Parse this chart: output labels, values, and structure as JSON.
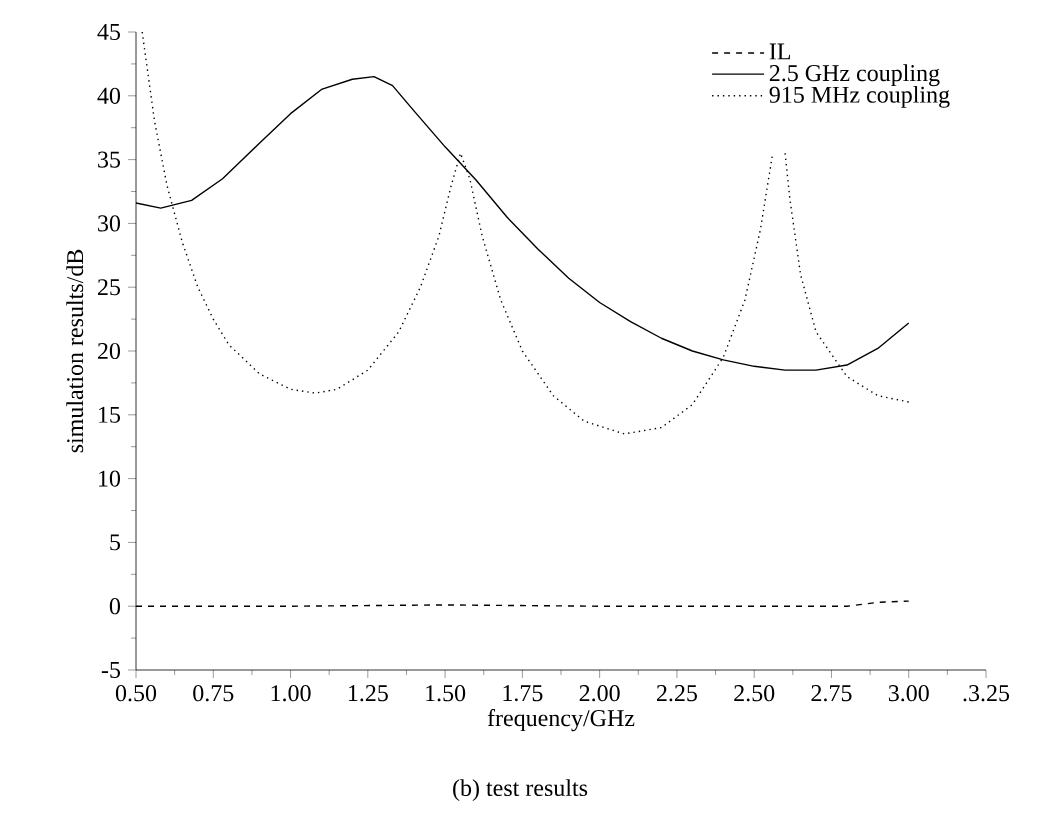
{
  "chart_data": {
    "type": "line",
    "xlabel": "frequency/GHz",
    "ylabel": "simulation results/dB",
    "annotations": [
      "(b) test results"
    ],
    "xlim": [
      0.5,
      3.25
    ],
    "ylim": [
      -5,
      45
    ],
    "xticks": [
      {
        "value": 0.5,
        "label": "0.50"
      },
      {
        "value": 0.75,
        "label": "0.75"
      },
      {
        "value": 1.0,
        "label": "1.00"
      },
      {
        "value": 1.25,
        "label": "1.25"
      },
      {
        "value": 1.5,
        "label": "1.50"
      },
      {
        "value": 1.75,
        "label": "1.75"
      },
      {
        "value": 2.0,
        "label": "2.00"
      },
      {
        "value": 2.25,
        "label": "2.25"
      },
      {
        "value": 2.5,
        "label": "2.50"
      },
      {
        "value": 2.75,
        "label": "2.75"
      },
      {
        "value": 3.0,
        "label": "3.00"
      },
      {
        "value": 3.25,
        "label": ".3.25"
      }
    ],
    "yticks": [
      -5,
      0,
      5,
      10,
      15,
      20,
      25,
      30,
      35,
      40,
      45
    ],
    "legend": "top right",
    "grid": false,
    "series": [
      {
        "name": "IL",
        "color": "#000000",
        "line_style": "dashed",
        "x": [
          0.5,
          1.0,
          1.5,
          2.0,
          2.5,
          2.8,
          2.9,
          3.0
        ],
        "values": [
          0,
          0,
          0.1,
          0,
          0,
          0,
          0.3,
          0.4
        ]
      },
      {
        "name": "2.5 GHz coupling",
        "color": "#000000",
        "line_style": "solid",
        "x": [
          0.5,
          0.58,
          0.68,
          0.78,
          0.9,
          1.0,
          1.1,
          1.2,
          1.27,
          1.33,
          1.4,
          1.5,
          1.6,
          1.7,
          1.8,
          1.9,
          2.0,
          2.1,
          2.2,
          2.3,
          2.4,
          2.5,
          2.6,
          2.7,
          2.8,
          2.9,
          3.0
        ],
        "values": [
          31.6,
          31.2,
          31.8,
          33.5,
          36.3,
          38.6,
          40.5,
          41.3,
          41.5,
          40.8,
          38.8,
          36.0,
          33.4,
          30.5,
          28.0,
          25.7,
          23.8,
          22.3,
          21.0,
          20.0,
          19.3,
          18.8,
          18.5,
          18.5,
          18.9,
          20.2,
          22.2
        ]
      },
      {
        "name": "915 MHz coupling",
        "color": "#000000",
        "line_style": "dotted",
        "x": [
          0.52,
          0.56,
          0.6,
          0.65,
          0.7,
          0.75,
          0.8,
          0.9,
          1.0,
          1.08,
          1.15,
          1.25,
          1.35,
          1.42,
          1.48,
          1.52,
          1.55,
          1.58,
          1.62,
          1.68,
          1.75,
          1.85,
          1.95,
          2.08,
          2.2,
          2.3,
          2.4,
          2.47,
          2.52,
          2.56,
          2.575,
          2.6,
          2.615,
          2.65,
          2.7,
          2.8,
          2.9,
          3.0
        ],
        "values": [
          45,
          38,
          33,
          28.5,
          25,
          22.5,
          20.5,
          18.2,
          17.0,
          16.7,
          17.0,
          18.5,
          21.5,
          25,
          29,
          33,
          35.5,
          33.5,
          29,
          24,
          20,
          16.5,
          14.5,
          13.5,
          14,
          15.8,
          19.5,
          24,
          29.5,
          35.5,
          null,
          35.5,
          32,
          26,
          21.5,
          18,
          16.5,
          16.0
        ]
      }
    ]
  }
}
